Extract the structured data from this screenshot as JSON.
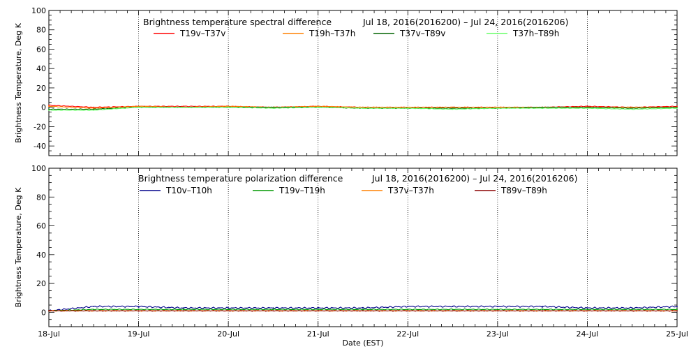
{
  "x_axis_label": "Date (EST)",
  "chart_data": [
    {
      "type": "line",
      "title": "Brightness temperature spectral difference",
      "date_range": "Jul 18, 2016(2016200) – Jul 24, 2016(2016206)",
      "ylabel": "Brightness Temperature, Deg K",
      "ylim": [
        -50,
        100
      ],
      "yticks": [
        -40,
        -20,
        0,
        20,
        40,
        60,
        80,
        100
      ],
      "xlim": [
        0,
        7
      ],
      "xtick_labels": [
        "18-Jul",
        "19-Jul",
        "20-Jul",
        "21-Jul",
        "22-Jul",
        "23-Jul",
        "24-Jul",
        "25-Jul"
      ],
      "x_unit": "days since 18-Jul 00:00",
      "grid": "vertical dotted lines at each day",
      "legend_position": "top",
      "series": [
        {
          "name": "T19v–T37v",
          "color": "#ff0000",
          "x": [
            0,
            0.5,
            1,
            1.5,
            2,
            2.5,
            3,
            3.5,
            4,
            4.5,
            5,
            5.5,
            6,
            6.5,
            7
          ],
          "values": [
            2,
            0,
            1,
            1,
            1,
            0,
            1,
            0,
            0,
            0,
            0,
            0,
            1,
            0,
            1
          ]
        },
        {
          "name": "T19h–T37h",
          "color": "#ff8000",
          "x": [
            0,
            0.5,
            1,
            1.5,
            2,
            2.5,
            3,
            3.5,
            4,
            4.5,
            5,
            5.5,
            6,
            6.5,
            7
          ],
          "values": [
            1,
            -1,
            1,
            0,
            1,
            0,
            1,
            0,
            0,
            0,
            0,
            0,
            0,
            0,
            0
          ]
        },
        {
          "name": "T37v–T89v",
          "color": "#006400",
          "x": [
            0,
            0.5,
            1,
            1.5,
            2,
            2.5,
            3,
            3.5,
            4,
            4.5,
            5,
            5.5,
            6,
            6.5,
            7
          ],
          "values": [
            -2,
            -2,
            0,
            0,
            0,
            0,
            0,
            -1,
            -1,
            -1,
            -1,
            0,
            0,
            -1,
            0
          ]
        },
        {
          "name": "T37h–T89h",
          "color": "#66ff66",
          "x": [
            0,
            0.5,
            1,
            1.5,
            2,
            2.5,
            3,
            3.5,
            4,
            4.5,
            5,
            5.5,
            6,
            6.5,
            7
          ],
          "values": [
            -3,
            -3,
            0,
            0,
            0,
            -1,
            0,
            -1,
            -1,
            -2,
            -1,
            -1,
            -1,
            -2,
            -1
          ]
        }
      ]
    },
    {
      "type": "line",
      "title": "Brightness temperature polarization difference",
      "date_range": "Jul 18, 2016(2016200) – Jul 24, 2016(2016206)",
      "ylabel": "Brightness Temperature, Deg K",
      "ylim": [
        -10,
        100
      ],
      "yticks": [
        0,
        20,
        40,
        60,
        80,
        100
      ],
      "xlim": [
        0,
        7
      ],
      "xtick_labels": [
        "18-Jul",
        "19-Jul",
        "20-Jul",
        "21-Jul",
        "22-Jul",
        "23-Jul",
        "24-Jul",
        "25-Jul"
      ],
      "x_unit": "days since 18-Jul 00:00",
      "grid": "vertical dotted lines at each day",
      "legend_position": "top",
      "series": [
        {
          "name": "T10v–T10h",
          "color": "#00008b",
          "x": [
            0,
            0.5,
            1,
            1.5,
            2,
            2.5,
            3,
            3.5,
            4,
            4.5,
            5,
            5.5,
            6,
            6.5,
            7
          ],
          "values": [
            1,
            4,
            4,
            3,
            3,
            3,
            3,
            3,
            4,
            4,
            4,
            4,
            3,
            3,
            4
          ]
        },
        {
          "name": "T19v–T19h",
          "color": "#009900",
          "x": [
            0,
            0.5,
            1,
            1.5,
            2,
            2.5,
            3,
            3.5,
            4,
            4.5,
            5,
            5.5,
            6,
            6.5,
            7
          ],
          "values": [
            1,
            2,
            2,
            2,
            2,
            2,
            2,
            2,
            2,
            2,
            2,
            2,
            2,
            2,
            2
          ]
        },
        {
          "name": "T37v–T37h",
          "color": "#ff8000",
          "x": [
            0,
            0.5,
            1,
            1.5,
            2,
            2.5,
            3,
            3.5,
            4,
            4.5,
            5,
            5.5,
            6,
            6.5,
            7
          ],
          "values": [
            1,
            1,
            1,
            1,
            1,
            1,
            1,
            1,
            1,
            1,
            1,
            1,
            1,
            1,
            1
          ]
        },
        {
          "name": "T89v–T89h",
          "color": "#8b0000",
          "x": [
            0,
            0.5,
            1,
            1.5,
            2,
            2.5,
            3,
            3.5,
            4,
            4.5,
            5,
            5.5,
            6,
            6.5,
            7
          ],
          "values": [
            1,
            1,
            1,
            1,
            1,
            1,
            1,
            1,
            1,
            1,
            1,
            1,
            1,
            1,
            1
          ]
        }
      ]
    }
  ]
}
